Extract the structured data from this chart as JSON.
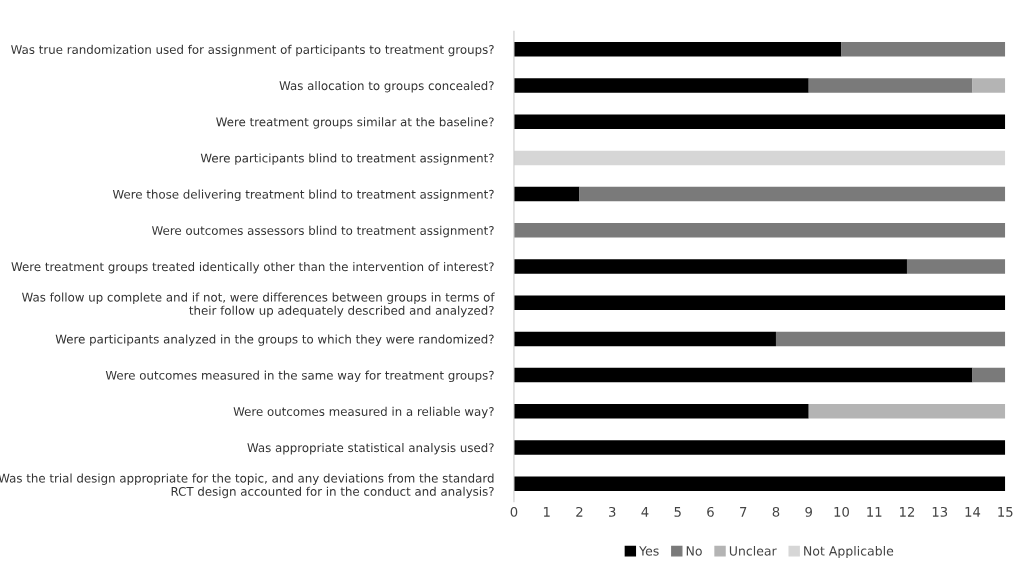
{
  "chart_data": {
    "type": "bar",
    "orientation": "horizontal",
    "stacked": true,
    "categories": [
      "Was true randomization used for assignment of participants to treatment groups?",
      "Was allocation to groups concealed?",
      "Were treatment groups similar at the baseline?",
      "Were participants blind to treatment assignment?",
      "Were those delivering treatment blind to treatment assignment?",
      "Were outcomes assessors blind to treatment assignment?",
      "Were treatment groups treated identically other than the intervention of interest?",
      "Was follow up complete and if not, were differences between groups in terms of\ntheir follow up adequately described and analyzed?",
      "Were participants analyzed in the groups to which they were randomized?",
      "Were outcomes measured in the same way for treatment groups?",
      "Were outcomes measured in a reliable way?",
      "Was appropriate statistical analysis used?",
      "Was the trial design appropriate for the topic, and any deviations from the standard\nRCT design accounted for in the conduct and analysis?"
    ],
    "series": [
      {
        "name": "Yes",
        "color": "#000000",
        "values": [
          10,
          9,
          15,
          0,
          2,
          0,
          12,
          15,
          8,
          14,
          9,
          15,
          15
        ]
      },
      {
        "name": "No",
        "color": "#7a7a7a",
        "values": [
          5,
          5,
          0,
          0,
          13,
          15,
          3,
          0,
          7,
          1,
          0,
          0,
          0
        ]
      },
      {
        "name": "Unclear",
        "color": "#b4b4b4",
        "values": [
          0,
          1,
          0,
          0,
          0,
          0,
          0,
          0,
          0,
          0,
          6,
          0,
          0
        ]
      },
      {
        "name": "Not Applicable",
        "color": "#d6d6d6",
        "values": [
          0,
          0,
          0,
          15,
          0,
          0,
          0,
          0,
          0,
          0,
          0,
          0,
          0
        ]
      }
    ],
    "xlim": [
      0,
      15
    ],
    "xticks": [
      0,
      1,
      2,
      3,
      4,
      5,
      6,
      7,
      8,
      9,
      10,
      11,
      12,
      13,
      14,
      15
    ],
    "grid": false,
    "legend": "bottom"
  }
}
